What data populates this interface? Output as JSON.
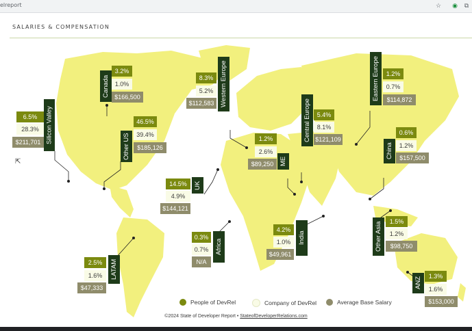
{
  "browser": {
    "url": "elreport"
  },
  "page": {
    "section_title": "SALARIES & COMPENSATION"
  },
  "colors": {
    "people": "#7b8a0f",
    "company": "#f9fbe6",
    "salary": "#8f8c6b",
    "label_bg": "#1e3b19",
    "map": "#f2f07e"
  },
  "regions": {
    "silicon_valley": {
      "name": "Silicon Valley",
      "people": "6.5%",
      "company": "28.3%",
      "salary": "$211,701"
    },
    "canada": {
      "name": "Canada",
      "people": "3.2%",
      "company": "1.0%",
      "salary": "$166,500"
    },
    "other_us": {
      "name": "Other US",
      "people": "46.5%",
      "company": "39.4%",
      "salary": "$185,126"
    },
    "western_europe": {
      "name": "Western Europe",
      "people": "8.3%",
      "company": "5.2%",
      "salary": "$112,583"
    },
    "me": {
      "name": "ME",
      "people": "1.2%",
      "company": "2.6%",
      "salary": "$89,250"
    },
    "central_europe": {
      "name": "Central Europe",
      "people": "5.4%",
      "company": "8.1%",
      "salary": "$121,109"
    },
    "eastern_europe": {
      "name": "Eastern Europe",
      "people": "1.2%",
      "company": "0.7%",
      "salary": "$114,872"
    },
    "china": {
      "name": "China",
      "people": "0.6%",
      "company": "1.2%",
      "salary": "$157,500"
    },
    "uk": {
      "name": "UK",
      "people": "14.5%",
      "company": "4.9%",
      "salary": "$144,121"
    },
    "africa": {
      "name": "Africa",
      "people": "0.3%",
      "company": "0.7%",
      "salary": "N/A"
    },
    "india": {
      "name": "India",
      "people": "4.2%",
      "company": "1.0%",
      "salary": "$49,961"
    },
    "other_asia": {
      "name": "Other Asia",
      "people": "1.5%",
      "company": "1.2%",
      "salary": "$98,750"
    },
    "latam": {
      "name": "LATAM",
      "people": "2.5%",
      "company": "1.6%",
      "salary": "$47,333"
    },
    "anz": {
      "name": "ANZ",
      "people": "1.3%",
      "company": "1.6%",
      "salary": "$153,000"
    }
  },
  "legend": {
    "people": "People of DevRel",
    "company": "Company of DevRel",
    "salary": "Average Base Salary"
  },
  "footer": {
    "copyright": "©2024 State of Developer Report • ",
    "link": "StateofDeveloperRelations.com"
  }
}
